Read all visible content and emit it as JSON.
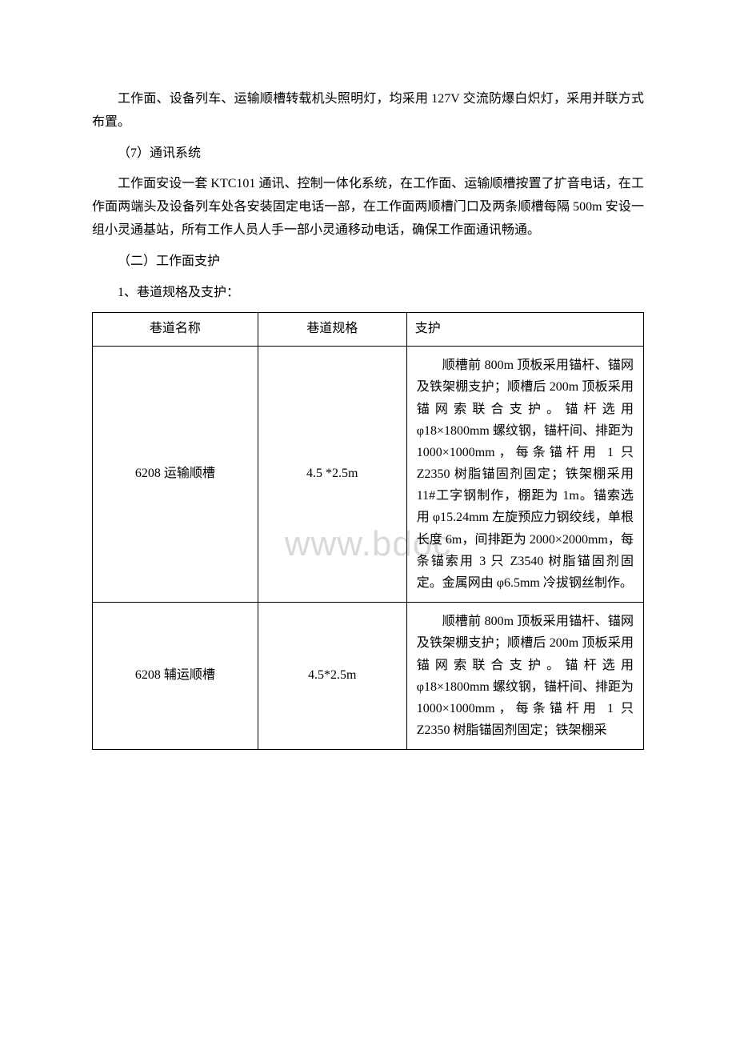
{
  "paragraphs": {
    "p1": "工作面、设备列车、运输顺槽转载机头照明灯，均采用 127V 交流防爆白炽灯，采用并联方式布置。",
    "p2": "（7）通讯系统",
    "p3": "工作面安设一套 KTC101 通讯、控制一体化系统，在工作面、运输顺槽按置了扩音电话，在工作面两端头及设备列车处各安装固定电话一部，在工作面两顺槽门口及两条顺槽每隔 500m 安设一组小灵通基站，所有工作人员人手一部小灵通移动电话，确保工作面通讯畅通。",
    "p4": "（二）工作面支护",
    "p5": "1、巷道规格及支护："
  },
  "watermark": "www.bdoc",
  "table": {
    "headers": {
      "c1": "巷道名称",
      "c2": "巷道规格",
      "c3": "支护"
    },
    "rows": [
      {
        "name": "6208 运输顺槽",
        "spec": "4.5 *2.5m",
        "support": "顺槽前 800m 顶板采用锚杆、锚网及铁架棚支护；顺槽后 200m 顶板采用锚网索联合支护。锚杆选用 φ18×1800mm 螺纹钢，锚杆间、排距为 1000×1000mm，每条锚杆用 1 只 Z2350 树脂锚固剂固定；铁架棚采用 11#工字钢制作，棚距为 1m。锚索选用 φ15.24mm 左旋预应力钢绞线，单根长度 6m，间排距为 2000×2000mm，每条锚索用 3 只 Z3540 树脂锚固剂固定。金属网由 φ6.5mm 冷拔钢丝制作。"
      },
      {
        "name": "6208 辅运顺槽",
        "spec": "4.5*2.5m",
        "support": "顺槽前 800m 顶板采用锚杆、锚网及铁架棚支护；顺槽后 200m 顶板采用锚网索联合支护。锚杆选用 φ18×1800mm 螺纹钢，锚杆间、排距为 1000×1000mm，每条锚杆用 1 只 Z2350 树脂锚固剂固定；铁架棚采"
      }
    ]
  }
}
